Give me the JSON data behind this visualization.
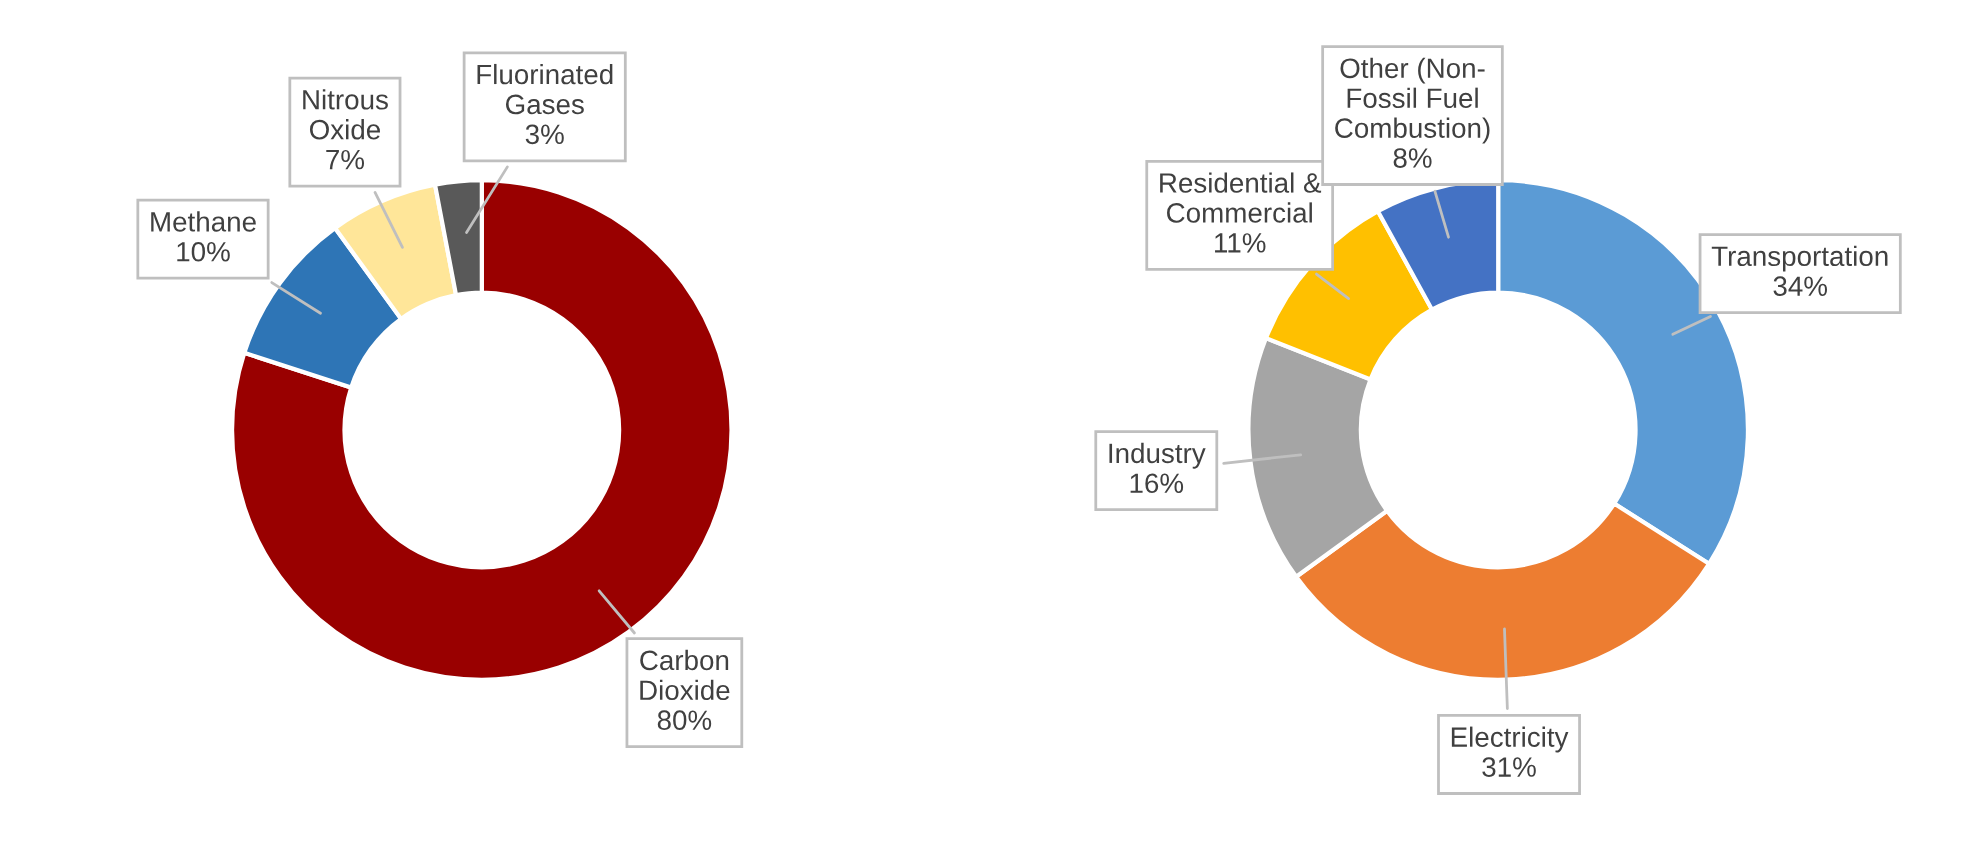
{
  "chart_data": [
    {
      "type": "donut",
      "categories": [
        "Carbon\nDioxide",
        "Methane",
        "Nitrous\nOxide",
        "Fluorinated\nGases"
      ],
      "values": [
        80,
        10,
        7,
        3
      ],
      "value_labels": [
        "80%",
        "10%",
        "7%",
        "3%"
      ],
      "colors": [
        "#990000",
        "#2e75b6",
        "#ffe699",
        "#595959"
      ]
    },
    {
      "type": "donut",
      "categories": [
        "Transportation",
        "Electricity",
        "Industry",
        "Residential &\nCommercial",
        "Other (Non-\nFossil Fuel\nCombustion)"
      ],
      "values": [
        34,
        31,
        16,
        11,
        8
      ],
      "value_labels": [
        "34%",
        "31%",
        "16%",
        "11%",
        "8%"
      ],
      "colors": [
        "#5b9bd5",
        "#ed7d31",
        "#a5a5a5",
        "#ffc000",
        "#4472c4"
      ]
    }
  ]
}
